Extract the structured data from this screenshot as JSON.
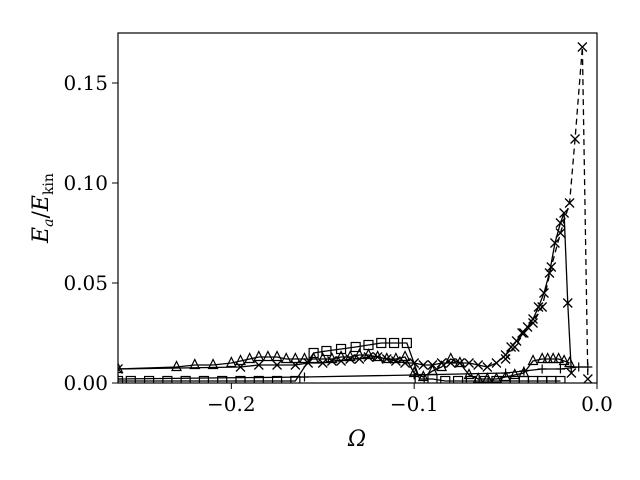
{
  "chart_data": {
    "type": "line",
    "title": "",
    "xlabel": "Ω",
    "ylabel": {
      "main": "E",
      "sub1": "a",
      "slash": "/",
      "main2": "E",
      "sub2": "kin"
    },
    "xlim": [
      -0.262,
      0.0
    ],
    "ylim": [
      0.0,
      0.175
    ],
    "xticks": [
      -0.2,
      -0.1,
      0.0
    ],
    "xtick_labels": [
      "−0.2",
      "−0.1",
      "0.0"
    ],
    "yticks": [
      0.0,
      0.05,
      0.1,
      0.15
    ],
    "ytick_labels": [
      "0.00",
      "0.05",
      "0.10",
      "0.15"
    ],
    "grid": false,
    "legend": "none",
    "series": [
      {
        "marker": "x",
        "line": "solid",
        "x": [
          -0.262,
          -0.195,
          -0.185,
          -0.175,
          -0.165,
          -0.158,
          -0.15,
          -0.145,
          -0.14,
          -0.135,
          -0.13,
          -0.125,
          -0.12,
          -0.115,
          -0.11,
          -0.105,
          -0.1,
          -0.095,
          -0.09,
          -0.085,
          -0.08,
          -0.075,
          -0.07,
          -0.065,
          -0.06,
          -0.055,
          -0.05,
          -0.047,
          -0.044,
          -0.041,
          -0.038,
          -0.035,
          -0.032,
          -0.029,
          -0.026,
          -0.023,
          -0.02,
          -0.018,
          -0.016,
          -0.014
        ],
        "y": [
          0.007,
          0.008,
          0.009,
          0.009,
          0.009,
          0.01,
          0.01,
          0.011,
          0.011,
          0.012,
          0.012,
          0.013,
          0.013,
          0.012,
          0.011,
          0.01,
          0.01,
          0.009,
          0.009,
          0.01,
          0.01,
          0.01,
          0.01,
          0.009,
          0.008,
          0.01,
          0.014,
          0.018,
          0.021,
          0.025,
          0.028,
          0.032,
          0.038,
          0.045,
          0.055,
          0.07,
          0.08,
          0.085,
          0.04,
          0.005
        ]
      },
      {
        "marker": "x",
        "line": "dashed",
        "x": [
          -0.05,
          -0.045,
          -0.04,
          -0.035,
          -0.03,
          -0.025,
          -0.02,
          -0.015,
          -0.012,
          -0.008,
          -0.005
        ],
        "y": [
          0.012,
          0.018,
          0.025,
          0.03,
          0.038,
          0.058,
          0.075,
          0.09,
          0.122,
          0.168,
          0.002
        ]
      },
      {
        "marker": "triangle",
        "line": "solid",
        "x": [
          -0.262,
          -0.23,
          -0.22,
          -0.21,
          -0.2,
          -0.195,
          -0.19,
          -0.185,
          -0.18,
          -0.175,
          -0.17,
          -0.165,
          -0.16,
          -0.155,
          -0.15,
          -0.145,
          -0.14,
          -0.135,
          -0.13,
          -0.125,
          -0.12,
          -0.115,
          -0.11,
          -0.105,
          -0.1,
          -0.095,
          -0.09,
          -0.085,
          -0.08,
          -0.075,
          -0.07,
          -0.065,
          -0.06,
          -0.055,
          -0.05,
          -0.045,
          -0.04,
          -0.035,
          -0.03,
          -0.027,
          -0.024,
          -0.021,
          -0.018,
          -0.015
        ],
        "y": [
          0.007,
          0.008,
          0.009,
          0.009,
          0.01,
          0.011,
          0.012,
          0.013,
          0.013,
          0.013,
          0.012,
          0.012,
          0.012,
          0.012,
          0.012,
          0.012,
          0.013,
          0.013,
          0.014,
          0.014,
          0.013,
          0.012,
          0.012,
          0.013,
          0.005,
          0.003,
          0.006,
          0.008,
          0.012,
          0.01,
          0.004,
          0.002,
          0.002,
          0.002,
          0.003,
          0.004,
          0.005,
          0.011,
          0.012,
          0.012,
          0.012,
          0.012,
          0.011,
          0.01
        ]
      },
      {
        "marker": "square",
        "line": "solid",
        "x": [
          -0.262,
          -0.255,
          -0.245,
          -0.235,
          -0.225,
          -0.215,
          -0.205,
          -0.195,
          -0.185,
          -0.175,
          -0.165,
          -0.155,
          -0.148,
          -0.14,
          -0.132,
          -0.125,
          -0.118,
          -0.111,
          -0.104,
          -0.097,
          -0.09,
          -0.083,
          -0.076,
          -0.069,
          -0.062,
          -0.055,
          -0.05,
          -0.045,
          -0.04,
          -0.035,
          -0.03,
          -0.025,
          -0.02
        ],
        "y": [
          0.001,
          0.001,
          0.001,
          0.001,
          0.001,
          0.001,
          0.001,
          0.001,
          0.001,
          0.001,
          0.001,
          0.015,
          0.016,
          0.017,
          0.018,
          0.019,
          0.02,
          0.02,
          0.02,
          0.002,
          0.002,
          0.001,
          0.001,
          0.001,
          0.001,
          0.001,
          0.001,
          0.001,
          0.001,
          0.001,
          0.001,
          0.001,
          0.001
        ]
      },
      {
        "marker": "plus",
        "line": "solid",
        "x": [
          -0.262,
          -0.16,
          -0.1,
          -0.05,
          -0.04,
          -0.03,
          -0.02,
          -0.01,
          -0.005
        ],
        "y": [
          0.002,
          0.003,
          0.004,
          0.005,
          0.006,
          0.007,
          0.007,
          0.008,
          0.008
        ]
      }
    ]
  }
}
